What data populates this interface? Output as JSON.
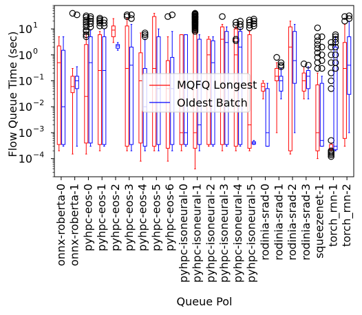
{
  "chart_data": {
    "type": "box",
    "xlabel": "Queue Pol",
    "ylabel": "Flow Queue Time (sec)",
    "yscale": "log",
    "ylim": [
      2e-05,
      80
    ],
    "yticks": [
      {
        "value": 0.0001,
        "base": "10",
        "exp": "−4"
      },
      {
        "value": 0.001,
        "base": "10",
        "exp": "−3"
      },
      {
        "value": 0.01,
        "base": "10",
        "exp": "−2"
      },
      {
        "value": 0.1,
        "base": "10",
        "exp": "−1"
      },
      {
        "value": 1,
        "base": "10",
        "exp": "0"
      },
      {
        "value": 10,
        "base": "10",
        "exp": "1"
      }
    ],
    "categories": [
      "onnx-roberta-0",
      "onnx-roberta-1",
      "pyhpc-eos-0",
      "pyhpc-eos-1",
      "pyhpc-eos-2",
      "pyhpc-eos-3",
      "pyhpc-eos-4",
      "pyhpc-eos-5",
      "pyhpc-eos-6",
      "pyhpc-isoneural-0",
      "pyhpc-isoneural-1",
      "pyhpc-isoneural-2",
      "pyhpc-isoneural-3",
      "pyhpc-isoneural-4",
      "pyhpc-isoneural-5",
      "rodinia-srad-0",
      "rodinia-srad-1",
      "rodinia-srad-2",
      "rodinia-srad-3",
      "squeezenet-1",
      "torch_rnn-1",
      "torch_rnn-2"
    ],
    "legend": {
      "position": "center",
      "entries": [
        "MQFQ Longest",
        "Oldest Batch"
      ]
    },
    "series": [
      {
        "name": "MQFQ Longest",
        "color": "#ff0000",
        "boxes": [
          {
            "wl": 0.0002,
            "q1": 0.00035,
            "med": 0.5,
            "q3": 2.2,
            "wh": 5,
            "fliers": []
          },
          {
            "wl": 0.00015,
            "q1": 0.035,
            "med": 0.06,
            "q3": 0.15,
            "wh": 0.3,
            "fliers": [
              40
            ]
          },
          {
            "wl": 0.00015,
            "q1": 0.0004,
            "med": 0.025,
            "q3": 2.5,
            "wh": 7,
            "fliers": [
              9,
              12,
              15,
              18,
              22,
              28,
              32,
              8,
              6,
              5
            ]
          },
          {
            "wl": 0.0002,
            "q1": 0.00035,
            "med": 0.25,
            "q3": 6,
            "wh": 8,
            "fliers": [
              13,
              17,
              20,
              23,
              26
            ]
          },
          {
            "wl": 3,
            "q1": 5,
            "med": 9,
            "q3": 13,
            "wh": 25,
            "fliers": []
          },
          {
            "wl": 0.0002,
            "q1": 0.0003,
            "med": 0.3,
            "q3": 13,
            "wh": 25,
            "fliers": [
              30,
              35
            ]
          },
          {
            "wl": 8e-05,
            "q1": 0.0004,
            "med": 0.1,
            "q3": 1.2,
            "wh": 7,
            "fliers": []
          },
          {
            "wl": 0.0002,
            "q1": 0.0003,
            "med": 0.3,
            "q3": 30,
            "wh": 40,
            "fliers": []
          },
          {
            "wl": 8e-05,
            "q1": 0.00025,
            "med": 0.05,
            "q3": 0.6,
            "wh": 5,
            "fliers": [
              30
            ]
          },
          {
            "wl": 0.0002,
            "q1": 0.00035,
            "med": 0.001,
            "q3": 6,
            "wh": 6,
            "fliers": []
          },
          {
            "wl": 4e-05,
            "q1": 0.00025,
            "med": 0.001,
            "q3": 7,
            "wh": 10,
            "fliers": [
              12,
              15,
              18,
              22,
              26,
              30,
              35,
              40,
              9,
              11,
              14,
              17,
              20,
              24,
              28,
              32,
              38,
              8,
              10,
              13,
              16,
              19,
              23,
              27,
              31,
              36
            ]
          },
          {
            "wl": 0.0003,
            "q1": 0.00035,
            "med": 1,
            "q3": 4,
            "wh": 5,
            "fliers": []
          },
          {
            "wl": 0.0002,
            "q1": 0.00035,
            "med": 4,
            "q3": 12,
            "wh": 15,
            "fliers": [
              30
            ]
          },
          {
            "wl": 0.0002,
            "q1": 0.0003,
            "med": 1,
            "q3": 10,
            "wh": 12,
            "fliers": [
              14,
              18,
              4,
              3.5
            ]
          },
          {
            "wl": 0.0002,
            "q1": 0.00025,
            "med": 0.002,
            "q3": 6,
            "wh": 8,
            "fliers": [
              11,
              14,
              18,
              22
            ]
          },
          {
            "wl": 0.02,
            "q1": 0.04,
            "med": 0.06,
            "q3": 0.08,
            "wh": 0.1,
            "fliers": []
          },
          {
            "wl": 0.001,
            "q1": 0.1,
            "med": 0.15,
            "q3": 0.3,
            "wh": 0.5,
            "fliers": [
              0.8
            ]
          },
          {
            "wl": 0.00015,
            "q1": 0.0002,
            "med": 2,
            "q3": 12,
            "wh": 20,
            "fliers": []
          },
          {
            "wl": 0.02,
            "q1": 0.04,
            "med": 0.1,
            "q3": 0.2,
            "wh": 0.35,
            "fliers": [
              0.45
            ]
          },
          {
            "wl": 0.0001,
            "q1": 0.0002,
            "med": 0.001,
            "q3": 0.07,
            "wh": 0.2,
            "fliers": [
              0.3,
              0.5,
              0.8,
              1.2,
              1.8,
              2.5,
              3.5,
              5,
              11
            ]
          },
          {
            "wl": 0.0002,
            "q1": 0.00022,
            "med": 0.00025,
            "q3": 0.00035,
            "wh": 0.0004,
            "fliers": [
              0.00012,
              0.00014,
              0.00016,
              0.00018,
              0.0002,
              0.0005,
              0.05,
              0.1,
              0.2,
              0.5,
              1,
              2,
              3
            ]
          },
          {
            "wl": 0.0003,
            "q1": 0.0006,
            "med": 0.3,
            "q3": 3,
            "wh": 15,
            "fliers": [
              20,
              30
            ]
          }
        ]
      },
      {
        "name": "Oldest Batch",
        "color": "#0000ff",
        "boxes": [
          {
            "wl": 0.0003,
            "q1": 0.00035,
            "med": 0.01,
            "q3": 1.5,
            "wh": 5,
            "fliers": []
          },
          {
            "wl": 0.0003,
            "q1": 0.05,
            "med": 0.1,
            "q3": 0.15,
            "wh": 0.35,
            "fliers": [
              35
            ]
          },
          {
            "wl": 0.0003,
            "q1": 0.0004,
            "med": 0.5,
            "q3": 5,
            "wh": 9,
            "fliers": [
              12,
              16,
              20,
              25,
              30
            ]
          },
          {
            "wl": 0.0003,
            "q1": 0.00035,
            "med": 0.25,
            "q3": 5,
            "wh": 10,
            "fliers": [
              13,
              17,
              22
            ]
          },
          {
            "wl": 1.5,
            "q1": 1.8,
            "med": 2.2,
            "q3": 2.5,
            "wh": 3,
            "fliers": []
          },
          {
            "wl": 0.0002,
            "q1": 0.00035,
            "med": 0.4,
            "q3": 2,
            "wh": 15,
            "fliers": [
              25,
              35
            ]
          },
          {
            "wl": 0.0002,
            "q1": 0.0003,
            "med": 0.01,
            "q3": 0.3,
            "wh": 4,
            "fliers": [
              5,
              6,
              7
            ]
          },
          {
            "wl": 0.0002,
            "q1": 0.00035,
            "med": 0.05,
            "q3": 5,
            "wh": 10,
            "fliers": []
          },
          {
            "wl": 0.0002,
            "q1": 0.00035,
            "med": 0.05,
            "q3": 0.8,
            "wh": 8,
            "fliers": [
              35
            ]
          },
          {
            "wl": 0.0003,
            "q1": 0.00035,
            "med": 0.001,
            "q3": 6,
            "wh": 6,
            "fliers": []
          },
          {
            "wl": 0.0002,
            "q1": 0.00035,
            "med": 0.002,
            "q3": 4,
            "wh": 6,
            "fliers": []
          },
          {
            "wl": 0.0003,
            "q1": 0.00035,
            "med": 0.5,
            "q3": 3.5,
            "wh": 5,
            "fliers": []
          },
          {
            "wl": 0.0003,
            "q1": 0.00035,
            "med": 3,
            "q3": 8,
            "wh": 12,
            "fliers": []
          },
          {
            "wl": 0.0003,
            "q1": 0.00035,
            "med": 2,
            "q3": 8,
            "wh": 10,
            "fliers": [
              12,
              15,
              20
            ]
          },
          {
            "wl": 0.00035,
            "q1": 0.00036,
            "med": 0.0004,
            "q3": 0.00045,
            "wh": 0.0005,
            "fliers": [
              13,
              16,
              20,
              24
            ]
          },
          {
            "wl": 0.0003,
            "q1": 0.0003,
            "med": 0.001,
            "q3": 0.05,
            "wh": 0.08,
            "fliers": []
          },
          {
            "wl": 0.02,
            "q1": 0.04,
            "med": 0.1,
            "q3": 0.15,
            "wh": 0.3,
            "fliers": [
              0.35,
              0.4,
              0.5
            ]
          },
          {
            "wl": 0.001,
            "q1": 0.08,
            "med": 0.6,
            "q3": 8,
            "wh": 15,
            "fliers": []
          },
          {
            "wl": 0.02,
            "q1": 0.05,
            "med": 0.15,
            "q3": 0.25,
            "wh": 0.35,
            "fliers": [
              0.4
            ]
          },
          {
            "wl": 0.0003,
            "q1": 0.0003,
            "med": 0.0005,
            "q3": 0.08,
            "wh": 0.15,
            "fliers": [
              0.3,
              0.6,
              1,
              2,
              5
            ]
          },
          {
            "wl": 0.0002,
            "q1": 0.00022,
            "med": 0.0003,
            "q3": 2,
            "wh": 5,
            "fliers": [
              0.3,
              0.5,
              1,
              2,
              3,
              4,
              5,
              6
            ]
          },
          {
            "wl": 0.001,
            "q1": 0.03,
            "med": 0.4,
            "q3": 5,
            "wh": 20,
            "fliers": [
              25,
              32
            ]
          }
        ]
      }
    ]
  }
}
